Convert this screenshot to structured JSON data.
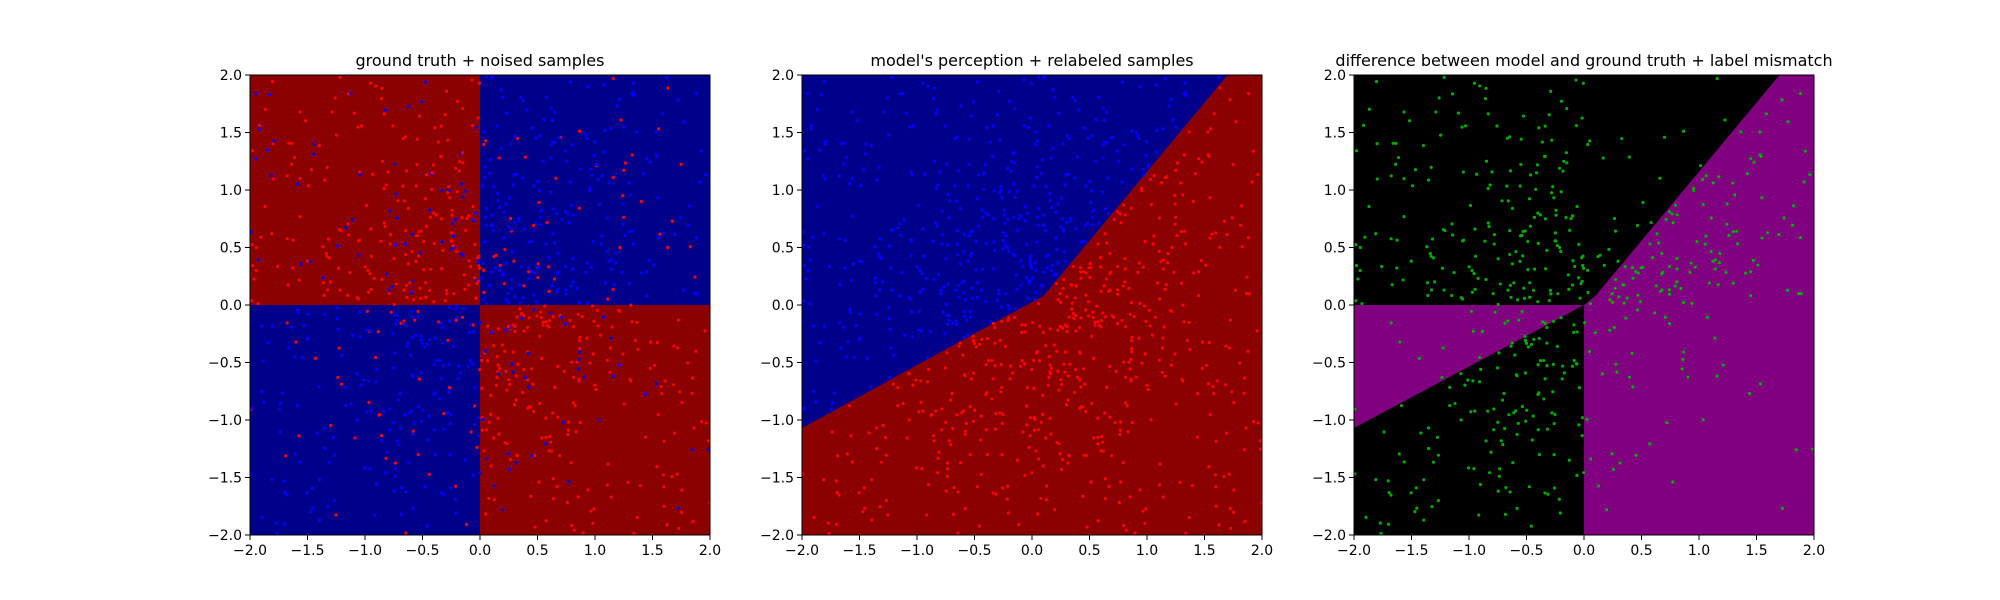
{
  "chart_data": [
    {
      "type": "scatter",
      "title": "ground truth + noised samples",
      "xlim": [
        -2.0,
        2.0
      ],
      "ylim": [
        -2.0,
        2.0
      ],
      "xticks": [
        "−2.0",
        "−1.5",
        "−1.0",
        "−0.5",
        "0.0",
        "0.5",
        "1.0",
        "1.5",
        "2.0"
      ],
      "yticks": [
        "−2.0",
        "−1.5",
        "−1.0",
        "−0.5",
        "0.0",
        "0.5",
        "1.0",
        "1.5",
        "2.0"
      ],
      "background": {
        "description": "XOR quadrants",
        "regions": [
          {
            "quadrant": "x<0,y>0",
            "color": "#8b0000"
          },
          {
            "quadrant": "x>0,y>0",
            "color": "#00008b"
          },
          {
            "quadrant": "x<0,y<0",
            "color": "#00008b"
          },
          {
            "quadrant": "x>0,y<0",
            "color": "#8b0000"
          }
        ]
      },
      "series": [
        {
          "color": "#ff0000"
        },
        {
          "color": "#0000ff"
        }
      ]
    },
    {
      "type": "scatter",
      "title": "model's perception + relabeled samples",
      "xlim": [
        -2.0,
        2.0
      ],
      "ylim": [
        -2.0,
        2.0
      ],
      "xticks": [
        "−2.0",
        "−1.5",
        "−1.0",
        "−0.5",
        "0.0",
        "0.5",
        "1.0",
        "1.5",
        "2.0"
      ],
      "yticks": [
        "−2.0",
        "−1.5",
        "−1.0",
        "−0.5",
        "0.0",
        "0.5",
        "1.0",
        "1.5",
        "2.0"
      ],
      "background": {
        "description": "two half-planes split by a bent boundary",
        "boundary": [
          [
            -2.0,
            -1.07
          ],
          [
            0.1,
            0.08
          ],
          [
            1.7,
            2.0
          ]
        ],
        "regions": [
          {
            "side": "upper-left",
            "color": "#00008b"
          },
          {
            "side": "lower-right",
            "color": "#8b0000"
          }
        ]
      },
      "series": [
        {
          "color": "#0000ff"
        },
        {
          "color": "#ff0000"
        }
      ]
    },
    {
      "type": "scatter",
      "title": "difference between model and ground truth + label mismatch",
      "xlim": [
        -2.0,
        2.0
      ],
      "ylim": [
        -2.0,
        2.0
      ],
      "xticks": [
        "−2.0",
        "−1.5",
        "−1.0",
        "−0.5",
        "0.0",
        "0.5",
        "1.0",
        "1.5",
        "2.0"
      ],
      "yticks": [
        "−2.0",
        "−1.5",
        "−1.0",
        "−0.5",
        "0.0",
        "0.5",
        "1.0",
        "1.5",
        "2.0"
      ],
      "background": {
        "description": "purple where model disagrees with ground truth, black where it agrees",
        "colors": {
          "mismatch": "#800080",
          "match": "#000000"
        }
      },
      "series": [
        {
          "color": "#00aa00"
        }
      ]
    }
  ]
}
